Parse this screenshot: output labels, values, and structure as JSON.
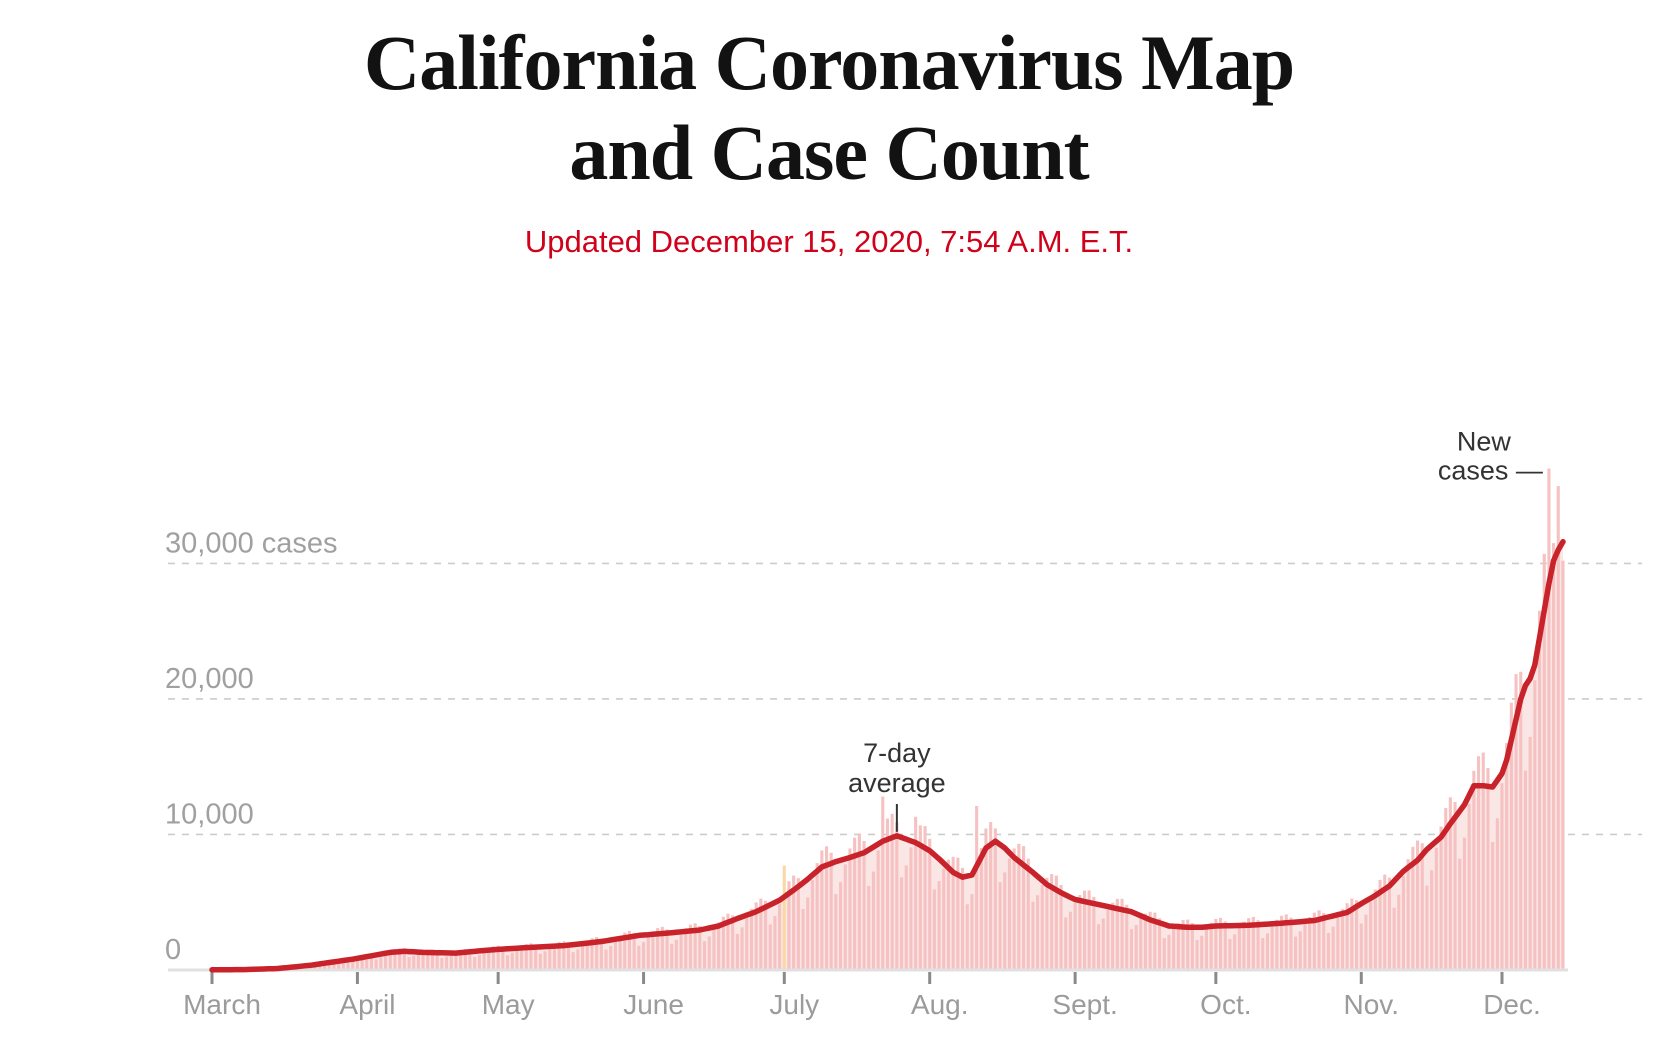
{
  "page": {
    "title_line1": "California Coronavirus Map",
    "title_line2": "and Case Count",
    "subtitle": "Updated December 15, 2020, 7:54 A.M. E.T."
  },
  "chart_data": {
    "type": "bar+line",
    "start_date": "2020-03-01",
    "end_date": "2020-12-14",
    "x_tick_labels": [
      "March",
      "April",
      "May",
      "June",
      "July",
      "Aug.",
      "Sept.",
      "Oct.",
      "Nov.",
      "Dec."
    ],
    "x_tick_day_index": [
      0,
      31,
      61,
      92,
      122,
      153,
      184,
      214,
      245,
      275
    ],
    "y_ticks": [
      {
        "value": 0,
        "label": "0"
      },
      {
        "value": 10000,
        "label": "10,000"
      },
      {
        "value": 20000,
        "label": "20,000"
      },
      {
        "value": 30000,
        "label": "30,000 cases"
      }
    ],
    "ylim": [
      0,
      37000
    ],
    "grid": "dashed-horizontal",
    "legend_position": "none",
    "annotations": {
      "new_cases": {
        "line1": "New",
        "line2": "cases —"
      },
      "avg": {
        "line1": "7-day",
        "line2": "average"
      }
    },
    "anomaly_day_indices": [
      122
    ],
    "series": [
      {
        "name": "New cases",
        "type": "bar",
        "values": [
          11,
          14,
          18,
          23,
          28,
          31,
          31,
          21,
          33,
          50,
          69,
          88,
          103,
          109,
          77,
          115,
          170,
          230,
          287,
          332,
          348,
          245,
          320,
          428,
          540,
          638,
          708,
          715,
          490,
          600,
          760,
          932,
          1073,
          1166,
          1155,
          779,
          940,
          1176,
          1404,
          1539,
          1597,
          1518,
          952,
          1072,
          1254,
          1404,
          1500,
          1517,
          1407,
          890,
          1011,
          1194,
          1350,
          1486,
          1549,
          1478,
          963,
          1125,
          1366,
          1587,
          1740,
          1795,
          1697,
          1095,
          1269,
          1527,
          1759,
          1914,
          1969,
          1857,
          1194,
          1380,
          1657,
          1904,
          2066,
          2124,
          2022,
          1313,
          1530,
          1853,
          2147,
          2349,
          2434,
          2310,
          1509,
          1770,
          2156,
          2511,
          2762,
          2877,
          2743,
          1785,
          2063,
          2477,
          2847,
          3090,
          3178,
          2993,
          1925,
          2226,
          2676,
          3078,
          3344,
          3442,
          3245,
          2118,
          2480,
          3016,
          3510,
          3930,
          4160,
          4029,
          2660,
          3140,
          3848,
          4509,
          4988,
          5275,
          5104,
          3367,
          3984,
          4893,
          7700,
          6554,
          6962,
          6784,
          4503,
          5360,
          6650,
          7884,
          8816,
          9125,
          8654,
          5600,
          6480,
          7790,
          8964,
          9764,
          10069,
          9515,
          6204,
          7260,
          8824,
          12800,
          11174,
          11525,
          10890,
          6843,
          7720,
          9049,
          11300,
          10672,
          10620,
          9680,
          5950,
          6560,
          7474,
          8136,
          8352,
          8290,
          7535,
          4848,
          5600,
          12100,
          9000,
          10440,
          10915,
          10450,
          6475,
          7200,
          8218,
          8964,
          9309,
          9145,
          8223,
          5040,
          5520,
          6270,
          6804,
          7076,
          6962,
          6270,
          3873,
          4294,
          4940,
          5535,
          5858,
          5871,
          5390,
          3378,
          3800,
          4441,
          4968,
          5249,
          5251,
          4813,
          3010,
          3320,
          3800,
          4158,
          4292,
          4234,
          3823,
          2354,
          2600,
          3064,
          3456,
          3683,
          3717,
          3465,
          2205,
          2520,
          3024,
          3474,
          3770,
          3843,
          3590,
          2290,
          2623,
          3122,
          3556,
          3828,
          3919,
          3677,
          2355,
          2709,
          3237,
          3703,
          4002,
          4105,
          3858,
          2475,
          2851,
          3413,
          3911,
          4234,
          4408,
          4203,
          2735,
          3194,
          3875,
          4497,
          4930,
          5271,
          5151,
          3430,
          4080,
          5035,
          5940,
          6650,
          7041,
          6820,
          4597,
          5546,
          6935,
          8172,
          9086,
          9558,
          9350,
          6230,
          7360,
          9025,
          10584,
          11948,
          12744,
          12394,
          8213,
          9760,
          12255,
          14688,
          15776,
          16048,
          14905,
          9450,
          11200,
          13775,
          16740,
          19720,
          21830,
          22000,
          14700,
          17200,
          21375,
          26500,
          30700,
          37000,
          31500,
          35700,
          30200
        ]
      },
      {
        "name": "7-day average",
        "type": "line",
        "values": [
          15,
          17,
          19,
          21,
          24,
          26,
          28,
          30,
          41,
          53,
          64,
          76,
          87,
          99,
          110,
          144,
          179,
          213,
          247,
          281,
          316,
          350,
          400,
          450,
          500,
          550,
          600,
          650,
          700,
          750,
          800,
          863,
          925,
          988,
          1050,
          1113,
          1175,
          1238,
          1300,
          1327,
          1353,
          1380,
          1360,
          1340,
          1320,
          1300,
          1293,
          1286,
          1279,
          1271,
          1264,
          1257,
          1250,
          1281,
          1313,
          1344,
          1375,
          1406,
          1438,
          1469,
          1500,
          1521,
          1543,
          1564,
          1586,
          1607,
          1629,
          1650,
          1669,
          1688,
          1706,
          1725,
          1744,
          1763,
          1781,
          1800,
          1838,
          1875,
          1913,
          1950,
          1988,
          2025,
          2063,
          2100,
          2156,
          2213,
          2269,
          2325,
          2381,
          2438,
          2494,
          2550,
          2579,
          2607,
          2636,
          2664,
          2693,
          2721,
          2750,
          2783,
          2817,
          2850,
          2883,
          2917,
          2950,
          3025,
          3100,
          3175,
          3250,
          3388,
          3525,
          3663,
          3800,
          3925,
          4050,
          4175,
          4300,
          4470,
          4640,
          4810,
          4980,
          5150,
          5400,
          5650,
          5900,
          6167,
          6433,
          6700,
          7000,
          7300,
          7600,
          7733,
          7867,
          8000,
          8100,
          8200,
          8300,
          8417,
          8533,
          8650,
          8863,
          9075,
          9288,
          9500,
          9633,
          9767,
          9900,
          9775,
          9650,
          9525,
          9400,
          9200,
          9000,
          8800,
          8500,
          8200,
          7867,
          7533,
          7200,
          7025,
          6850,
          6925,
          7000,
          7667,
          8333,
          9000,
          9250,
          9500,
          9250,
          9000,
          8650,
          8300,
          8025,
          7750,
          7475,
          7200,
          6900,
          6600,
          6300,
          6100,
          5900,
          5700,
          5533,
          5367,
          5200,
          5125,
          5050,
          4975,
          4900,
          4825,
          4750,
          4675,
          4600,
          4525,
          4450,
          4375,
          4300,
          4150,
          4000,
          3850,
          3700,
          3588,
          3475,
          3363,
          3250,
          3225,
          3200,
          3175,
          3150,
          3150,
          3150,
          3150,
          3183,
          3217,
          3250,
          3257,
          3264,
          3271,
          3279,
          3286,
          3293,
          3300,
          3321,
          3343,
          3364,
          3386,
          3407,
          3429,
          3450,
          3479,
          3507,
          3536,
          3564,
          3593,
          3621,
          3650,
          3736,
          3821,
          3907,
          3993,
          4079,
          4164,
          4250,
          4467,
          4683,
          4900,
          5100,
          5300,
          5500,
          5733,
          5967,
          6200,
          6567,
          6933,
          7300,
          7567,
          7833,
          8100,
          8500,
          8900,
          9200,
          9500,
          9800,
          10300,
          10800,
          11267,
          11733,
          12200,
          12900,
          13600,
          13600,
          13600,
          13550,
          13500,
          14000,
          14500,
          15500,
          17000,
          18500,
          20000,
          21000,
          21500,
          22500,
          24500,
          26500,
          28500,
          30200,
          31000,
          31600
        ]
      }
    ],
    "colors": {
      "title": "#121212",
      "subtitle_red": "#d0021b",
      "line": "#c8222a",
      "bar": "#f5c1c1",
      "bar_anomaly": "#f8d9a3",
      "area": "#fbe6e6",
      "grid": "#cccccc",
      "axis": "#e0e0e0",
      "tick": "#8a8a8a",
      "axis_label": "#a0a0a0",
      "month_label": "#9b9b9b",
      "annotation": "#333333"
    }
  }
}
